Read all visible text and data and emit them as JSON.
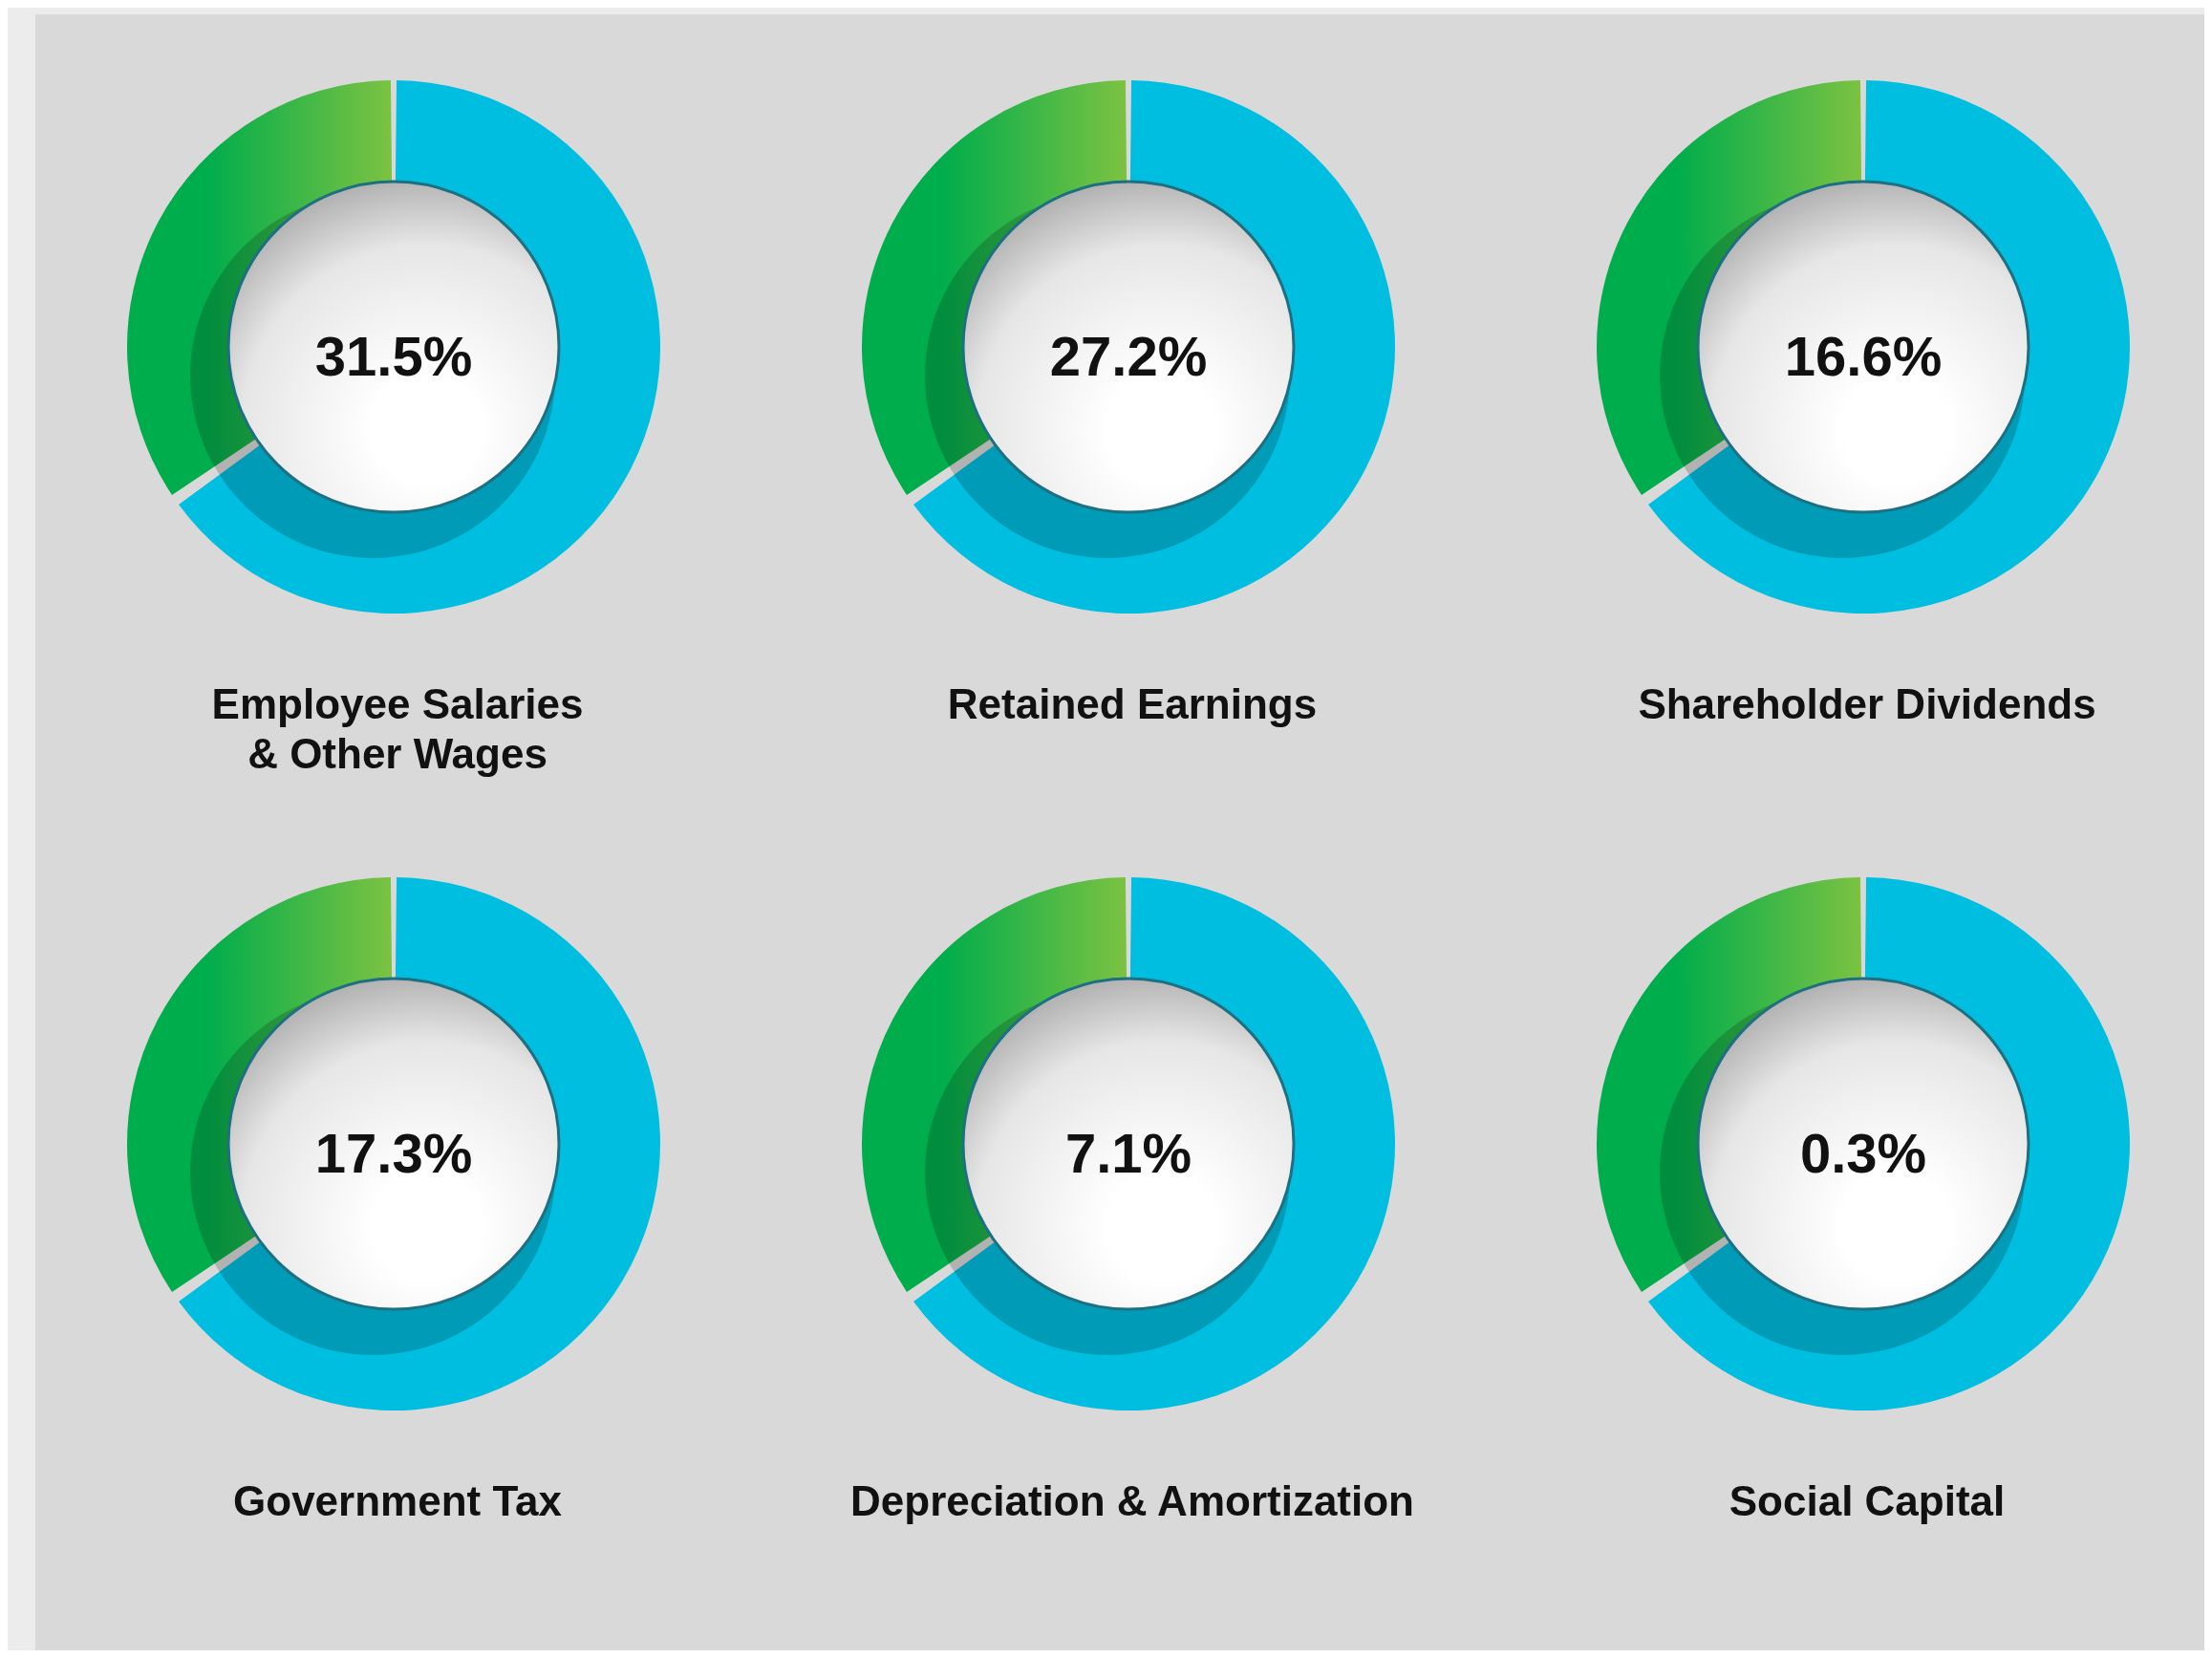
{
  "chart_data": [
    {
      "type": "other",
      "title": "Employee Salaries & Other Wages",
      "values": [
        31.5
      ],
      "value_labels": [
        "31.5%"
      ]
    },
    {
      "type": "other",
      "title": "Retained Earnings",
      "values": [
        27.2
      ],
      "value_labels": [
        "27.2%"
      ]
    },
    {
      "type": "other",
      "title": "Shareholder Dividends",
      "values": [
        16.6
      ],
      "value_labels": [
        "16.6%"
      ]
    },
    {
      "type": "other",
      "title": "Government Tax",
      "values": [
        17.3
      ],
      "value_labels": [
        "17.3%"
      ]
    },
    {
      "type": "other",
      "title": "Depreciation & Amortization",
      "values": [
        7.1
      ],
      "value_labels": [
        "7.1%"
      ]
    },
    {
      "type": "other",
      "title": "Social Capital",
      "values": [
        0.3
      ],
      "value_labels": [
        "0.3%"
      ]
    }
  ]
}
